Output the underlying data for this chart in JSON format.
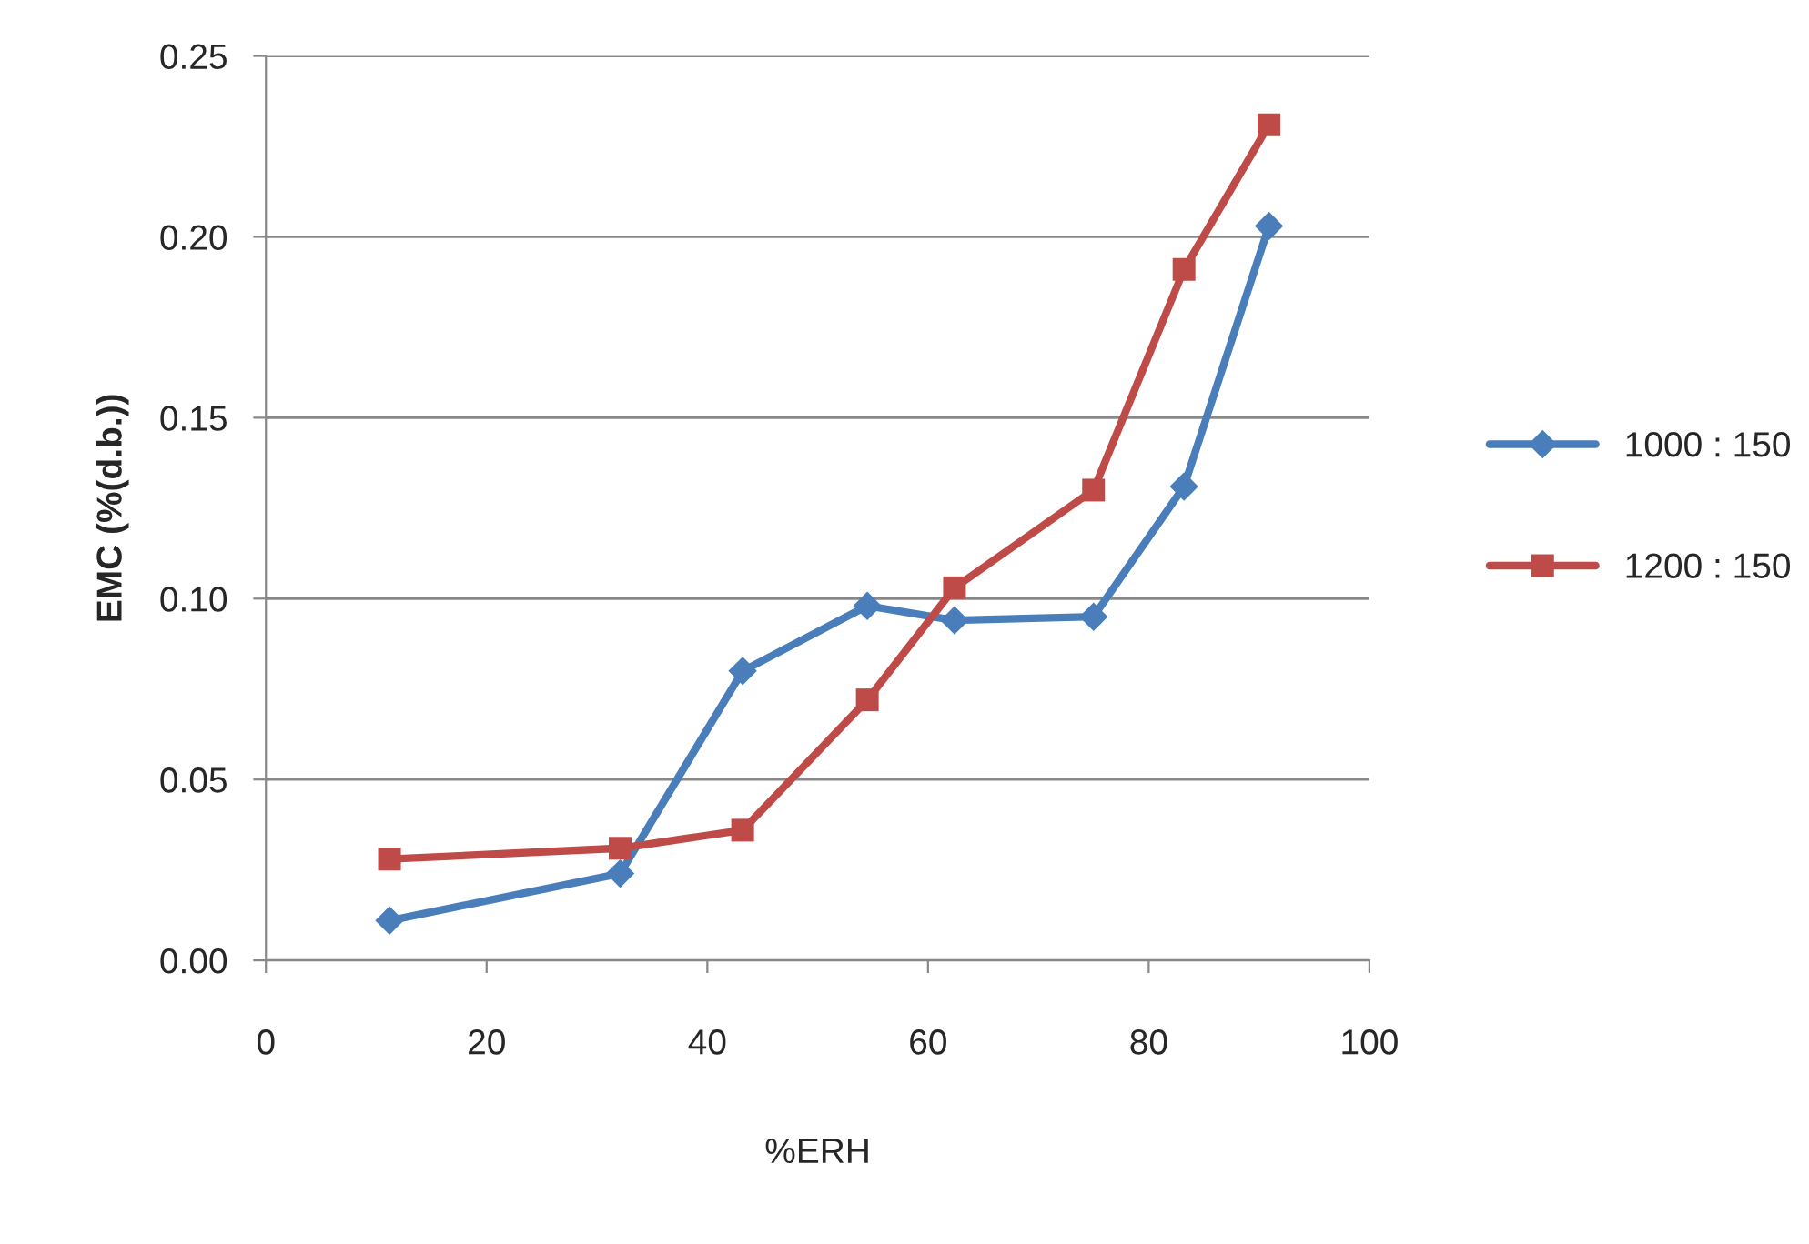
{
  "chart_data": {
    "type": "line",
    "xlabel": "%ERH",
    "ylabel": "EMC (%(d.b.))",
    "x": [
      11.2,
      32.1,
      43.2,
      54.5,
      62.4,
      75.0,
      83.2,
      90.9
    ],
    "series": [
      {
        "name": "1000 : 150",
        "color": "#4a7ebb",
        "marker": "diamond",
        "values": [
          0.011,
          0.024,
          0.08,
          0.098,
          0.094,
          0.095,
          0.131,
          0.203
        ]
      },
      {
        "name": "1200 : 150",
        "color": "#be4b48",
        "marker": "square",
        "values": [
          0.028,
          0.031,
          0.036,
          0.072,
          0.103,
          0.13,
          0.191,
          0.231
        ]
      }
    ],
    "xlim": [
      0,
      100
    ],
    "xticks": [
      0,
      20,
      40,
      60,
      80,
      100
    ],
    "ylim": [
      0,
      0.25
    ],
    "yticks": [
      {
        "value": 0,
        "label": "0.00"
      },
      {
        "value": 0.05,
        "label": "0.05"
      },
      {
        "value": 0.1,
        "label": "0.10"
      },
      {
        "value": 0.15,
        "label": "0.15"
      },
      {
        "value": 0.2,
        "label": "0.20"
      },
      {
        "value": 0.25,
        "label": "0.25"
      }
    ],
    "grid": "y",
    "legend": "right"
  }
}
